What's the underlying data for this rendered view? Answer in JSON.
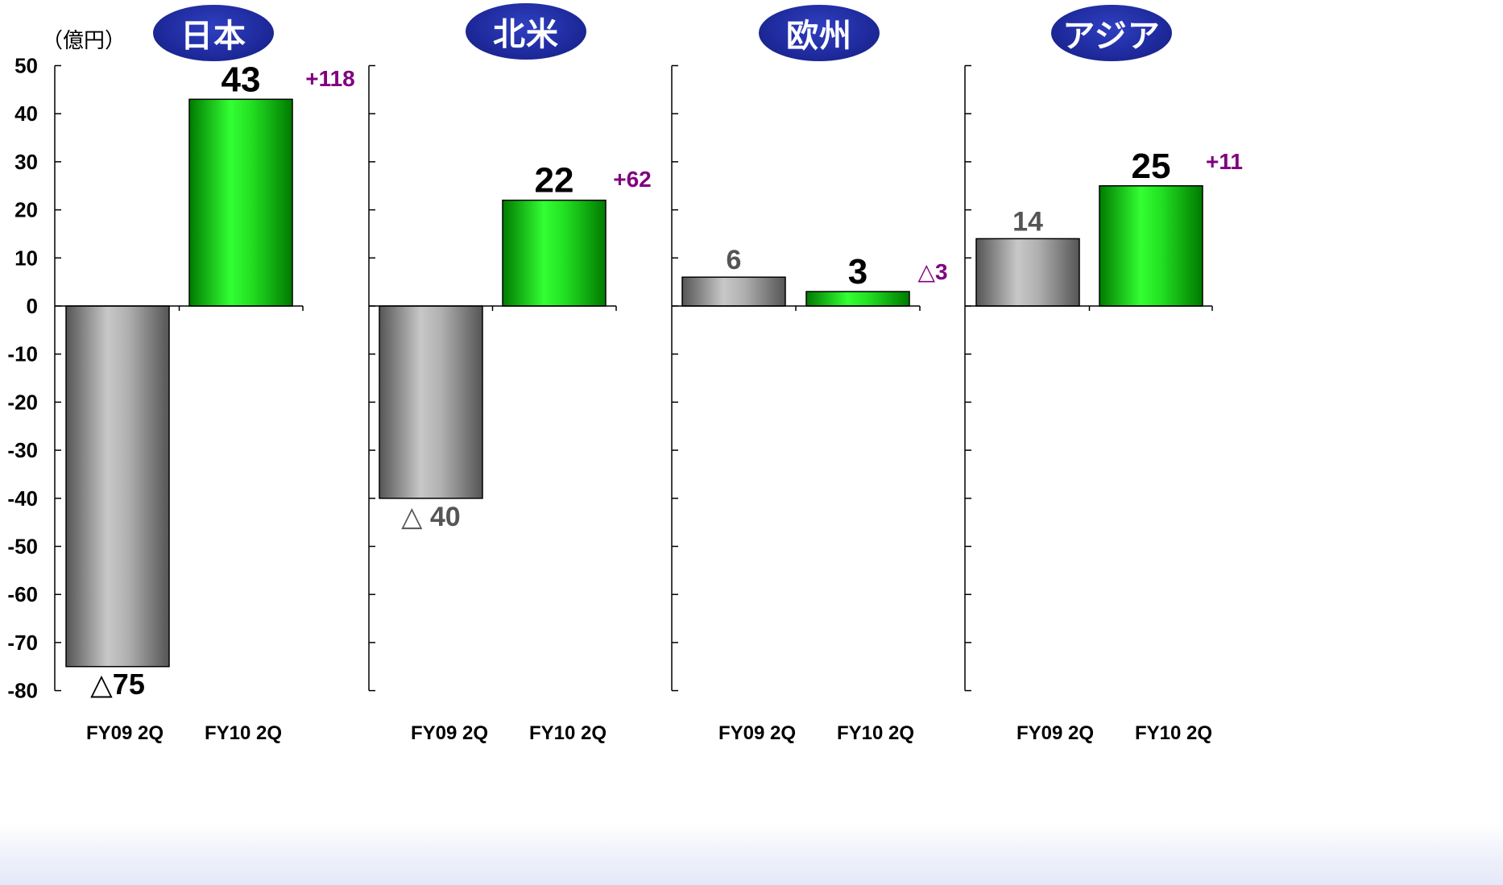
{
  "unit": "（億円）",
  "colors": {
    "prev": "#9a9a9a",
    "curr": "#22e022",
    "diff": "#800080",
    "badge": "#1e2a9c"
  },
  "chart_data": {
    "type": "bar",
    "ylim": [
      -80,
      50
    ],
    "yticks": [
      50,
      40,
      30,
      20,
      10,
      0,
      -10,
      -20,
      -30,
      -40,
      -50,
      -60,
      -70,
      -80
    ],
    "categories": [
      "FY09 2Q",
      "FY10 2Q"
    ],
    "panels": [
      {
        "region": "日本",
        "values": [
          -75,
          43
        ],
        "labels": [
          "△75",
          "43"
        ],
        "diff_label": "+118"
      },
      {
        "region": "北米",
        "values": [
          -40,
          22
        ],
        "labels": [
          "△ 40",
          "22"
        ],
        "diff_label": "+62"
      },
      {
        "region": "欧州",
        "values": [
          6,
          3
        ],
        "labels": [
          "6",
          "3"
        ],
        "diff_label": "△3"
      },
      {
        "region": "アジア",
        "values": [
          14,
          25
        ],
        "labels": [
          "14",
          "25"
        ],
        "diff_label": "+11"
      }
    ]
  }
}
